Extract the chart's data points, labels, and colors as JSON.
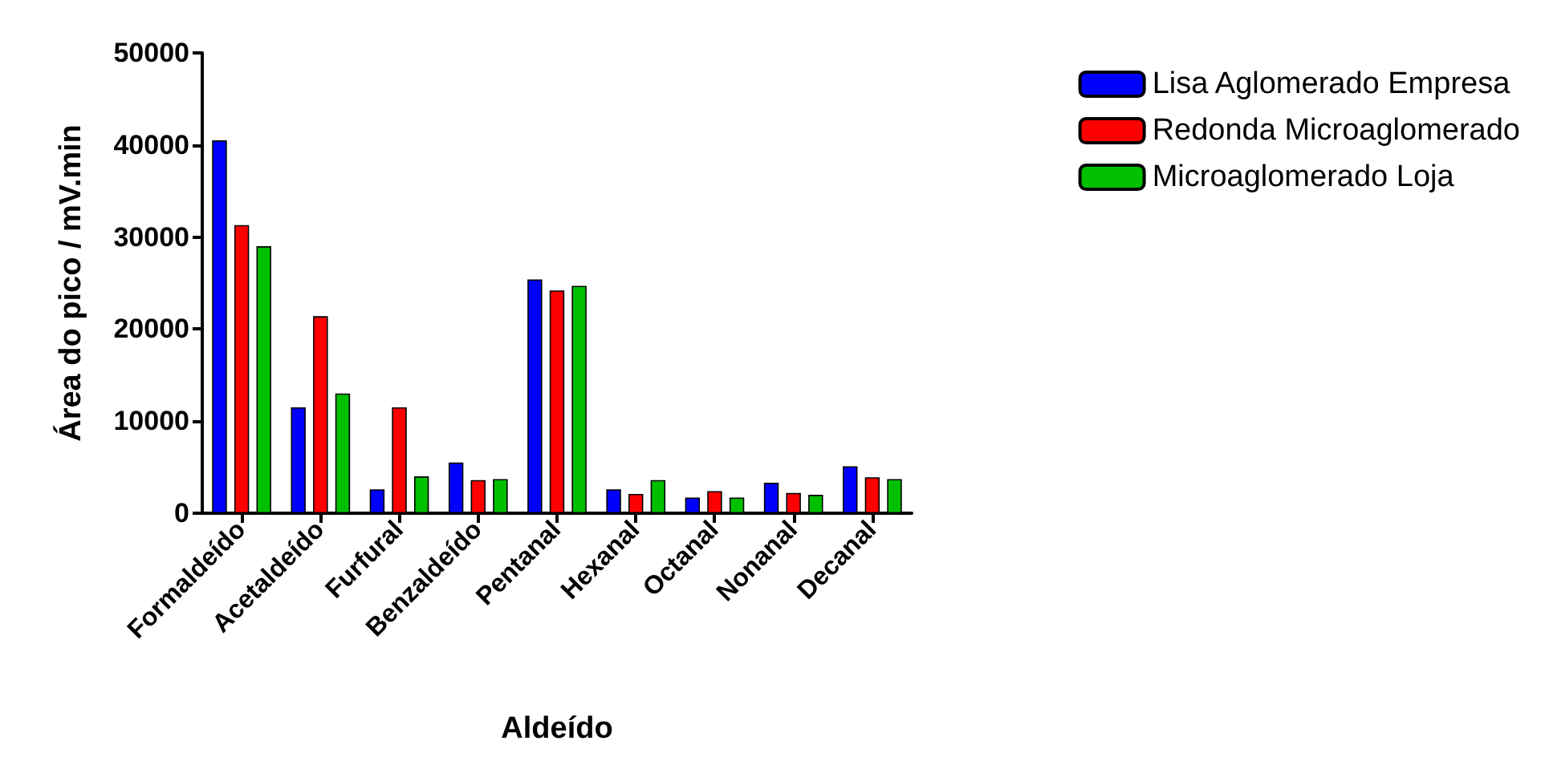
{
  "chart_data": {
    "type": "bar",
    "xlabel": "Aldeído",
    "ylabel": "Área do pico / mV.min",
    "categories": [
      "Formaldeído",
      "Acetaldeído",
      "Furfural",
      "Benzaldeído",
      "Pentanal",
      "Hexanal",
      "Octanal",
      "Nonanal",
      "Decanal"
    ],
    "series": [
      {
        "name": "Lisa Aglomerado Empresa",
        "color": "#0000ff",
        "values": [
          40500,
          11500,
          2600,
          5500,
          25400,
          2600,
          1700,
          3300,
          5100
        ]
      },
      {
        "name": "Redonda Microaglomerado",
        "color": "#ff0000",
        "values": [
          31300,
          21400,
          11500,
          3600,
          24200,
          2100,
          2400,
          2200,
          3900
        ]
      },
      {
        "name": "Microaglomerado Loja",
        "color": "#00c000",
        "values": [
          29000,
          13000,
          4000,
          3700,
          24700,
          3600,
          1700,
          2000,
          3700
        ]
      }
    ],
    "ylim": [
      0,
      50000
    ],
    "yticks": [
      0,
      10000,
      20000,
      30000,
      40000,
      50000
    ],
    "grid": false,
    "legend": "top right"
  }
}
